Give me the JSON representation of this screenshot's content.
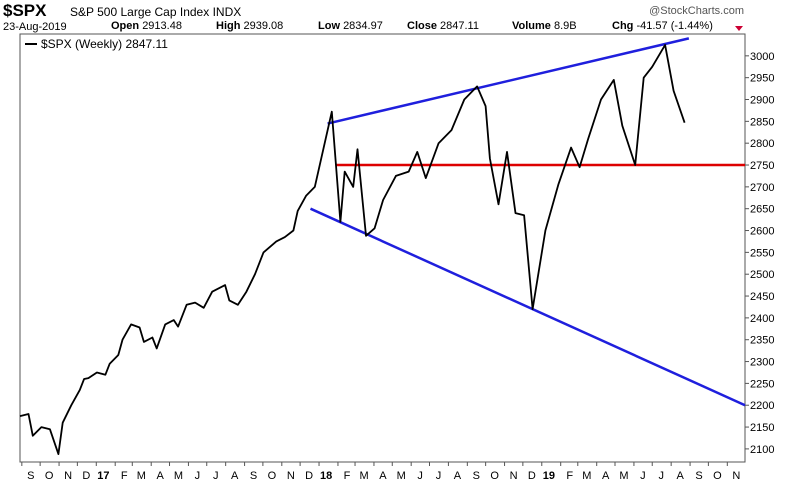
{
  "header": {
    "ticker": "$SPX",
    "company": "S&P 500 Large Cap Index",
    "exchange": "INDX",
    "date": "23-Aug-2019",
    "open_label": "Open",
    "open_value": "2913.48",
    "high_label": "High",
    "high_value": "2939.08",
    "low_label": "Low",
    "low_value": "2834.97",
    "close_label": "Close",
    "close_value": "2847.11",
    "volume_label": "Volume",
    "volume_value": "8.9B",
    "chg_label": "Chg",
    "chg_value": "-41.57 (-1.44%)",
    "brand": "@StockCharts.com",
    "chg_color": "#cc0033"
  },
  "chart_data": {
    "type": "line",
    "legend": "$SPX (Weekly) 2847.11",
    "legend_placement": "top-left",
    "grid": false,
    "ylim": [
      2070,
      3050
    ],
    "y_ticks": [
      2100,
      2150,
      2200,
      2250,
      2300,
      2350,
      2400,
      2450,
      2500,
      2550,
      2600,
      2650,
      2700,
      2750,
      2800,
      2850,
      2900,
      2950,
      3000
    ],
    "x_ticks": [
      "S",
      "O",
      "N",
      "D",
      "17",
      "F",
      "M",
      "A",
      "M",
      "J",
      "J",
      "A",
      "S",
      "O",
      "N",
      "D",
      "18",
      "F",
      "M",
      "A",
      "M",
      "J",
      "J",
      "A",
      "S",
      "O",
      "N",
      "D",
      "19",
      "F",
      "M",
      "A",
      "M",
      "J",
      "J",
      "A",
      "S",
      "O",
      "N"
    ],
    "x_ticks_bold": [
      "17",
      "18",
      "19"
    ],
    "x_start": "2016-08-29",
    "x_end": "2019-11-30",
    "series": [
      {
        "name": "$SPX (Weekly)",
        "color": "#000000",
        "points": [
          [
            "2016-08-29",
            2175
          ],
          [
            "2016-09-12",
            2180
          ],
          [
            "2016-09-19",
            2130
          ],
          [
            "2016-10-03",
            2150
          ],
          [
            "2016-10-17",
            2145
          ],
          [
            "2016-10-31",
            2088
          ],
          [
            "2016-11-07",
            2160
          ],
          [
            "2016-11-21",
            2200
          ],
          [
            "2016-12-05",
            2235
          ],
          [
            "2016-12-12",
            2260
          ],
          [
            "2016-12-19",
            2262
          ],
          [
            "2017-01-02",
            2275
          ],
          [
            "2017-01-16",
            2270
          ],
          [
            "2017-01-23",
            2295
          ],
          [
            "2017-02-06",
            2315
          ],
          [
            "2017-02-13",
            2350
          ],
          [
            "2017-02-27",
            2385
          ],
          [
            "2017-03-13",
            2378
          ],
          [
            "2017-03-20",
            2345
          ],
          [
            "2017-04-03",
            2355
          ],
          [
            "2017-04-10",
            2330
          ],
          [
            "2017-04-24",
            2385
          ],
          [
            "2017-05-08",
            2395
          ],
          [
            "2017-05-15",
            2380
          ],
          [
            "2017-05-29",
            2430
          ],
          [
            "2017-06-12",
            2435
          ],
          [
            "2017-06-26",
            2423
          ],
          [
            "2017-07-10",
            2460
          ],
          [
            "2017-07-31",
            2475
          ],
          [
            "2017-08-07",
            2440
          ],
          [
            "2017-08-21",
            2430
          ],
          [
            "2017-09-04",
            2460
          ],
          [
            "2017-09-18",
            2500
          ],
          [
            "2017-10-02",
            2550
          ],
          [
            "2017-10-23",
            2575
          ],
          [
            "2017-11-06",
            2585
          ],
          [
            "2017-11-20",
            2600
          ],
          [
            "2017-11-27",
            2645
          ],
          [
            "2017-12-11",
            2680
          ],
          [
            "2017-12-25",
            2700
          ],
          [
            "2018-01-08",
            2786
          ],
          [
            "2018-01-22",
            2872
          ],
          [
            "2018-02-05",
            2620
          ],
          [
            "2018-02-12",
            2735
          ],
          [
            "2018-02-26",
            2700
          ],
          [
            "2018-03-05",
            2786
          ],
          [
            "2018-03-19",
            2588
          ],
          [
            "2018-04-02",
            2605
          ],
          [
            "2018-04-16",
            2670
          ],
          [
            "2018-05-07",
            2725
          ],
          [
            "2018-05-28",
            2735
          ],
          [
            "2018-06-11",
            2780
          ],
          [
            "2018-06-25",
            2720
          ],
          [
            "2018-07-16",
            2800
          ],
          [
            "2018-08-06",
            2830
          ],
          [
            "2018-08-27",
            2900
          ],
          [
            "2018-09-17",
            2930
          ],
          [
            "2018-10-01",
            2885
          ],
          [
            "2018-10-08",
            2765
          ],
          [
            "2018-10-22",
            2660
          ],
          [
            "2018-11-05",
            2780
          ],
          [
            "2018-11-19",
            2640
          ],
          [
            "2018-12-03",
            2635
          ],
          [
            "2018-12-17",
            2420
          ],
          [
            "2019-01-07",
            2600
          ],
          [
            "2019-01-28",
            2705
          ],
          [
            "2019-02-18",
            2790
          ],
          [
            "2019-03-04",
            2745
          ],
          [
            "2019-03-18",
            2810
          ],
          [
            "2019-04-08",
            2900
          ],
          [
            "2019-04-29",
            2945
          ],
          [
            "2019-05-13",
            2840
          ],
          [
            "2019-06-03",
            2750
          ],
          [
            "2019-06-17",
            2950
          ],
          [
            "2019-07-01",
            2975
          ],
          [
            "2019-07-22",
            3025
          ],
          [
            "2019-08-05",
            2920
          ],
          [
            "2019-08-23",
            2847
          ]
        ]
      }
    ],
    "trendlines": [
      {
        "name": "upper-trendline",
        "color": "#1f1fdd",
        "from": [
          "2018-01-15",
          2845
        ],
        "to": [
          "2019-08-30",
          3040
        ]
      },
      {
        "name": "lower-trendline",
        "color": "#1f1fdd",
        "from": [
          "2017-12-18",
          2650
        ],
        "to": [
          "2019-11-30",
          2200
        ]
      },
      {
        "name": "support-line",
        "color": "#dd0000",
        "from": [
          "2018-01-29",
          2750
        ],
        "to": [
          "2019-11-30",
          2750
        ]
      }
    ]
  }
}
